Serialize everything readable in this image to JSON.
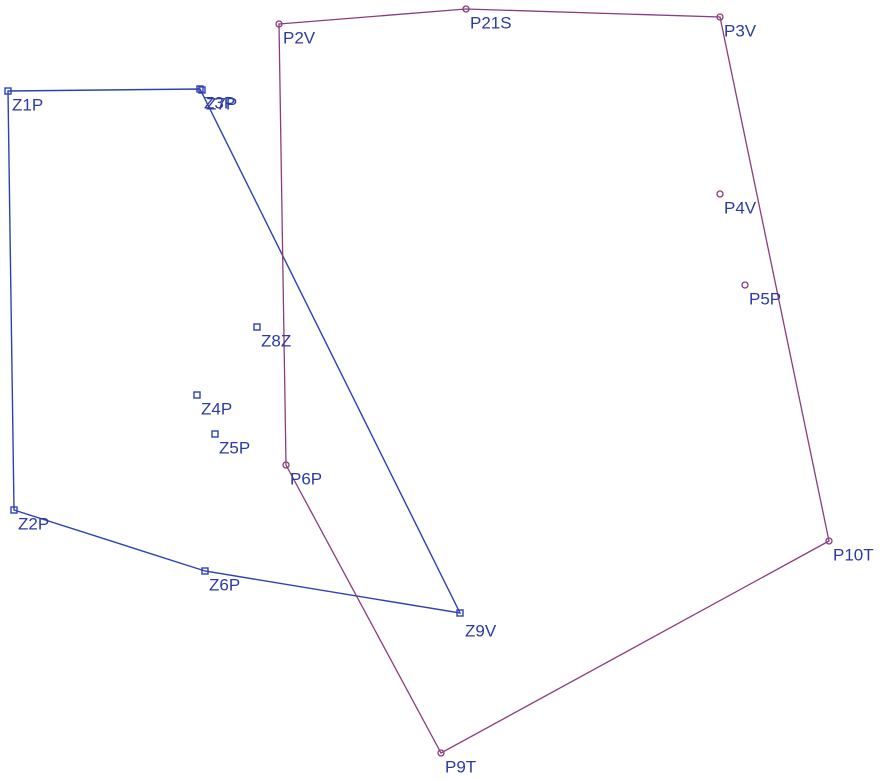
{
  "nodes": [
    {
      "label": "Z1P"
    },
    {
      "label": "Z3P"
    },
    {
      "label": "Z7P"
    },
    {
      "label": "Z8Z"
    },
    {
      "label": "Z4P"
    },
    {
      "label": "Z5P"
    },
    {
      "label": "Z2P"
    },
    {
      "label": "Z6P"
    },
    {
      "label": "Z9V"
    },
    {
      "label": "P2V"
    },
    {
      "label": "P21S"
    },
    {
      "label": "P3V"
    },
    {
      "label": "P4V"
    },
    {
      "label": "P5P"
    },
    {
      "label": "P6P"
    },
    {
      "label": "P10T"
    },
    {
      "label": "P9T"
    }
  ]
}
